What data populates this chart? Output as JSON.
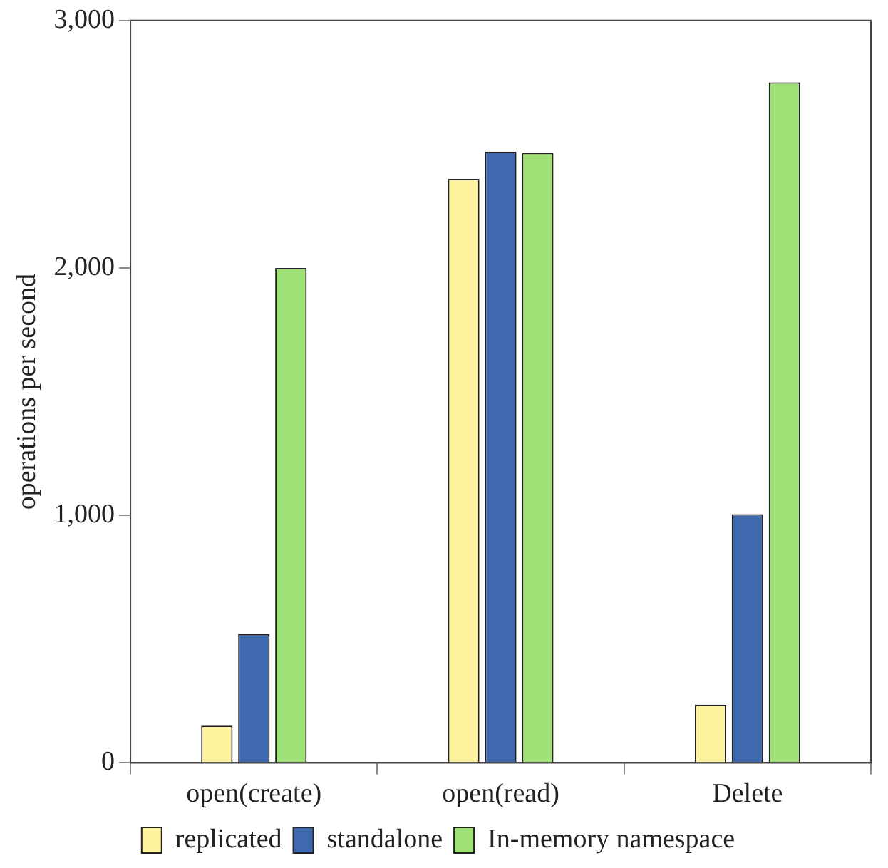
{
  "chart_data": {
    "type": "bar",
    "ylabel": "operations per second",
    "categories": [
      "open(create)",
      "open(read)",
      "Delete"
    ],
    "series": [
      {
        "name": "replicated",
        "color": "#fff29e",
        "values": [
          150,
          2360,
          235
        ]
      },
      {
        "name": "standalone",
        "color": "#3f69ae",
        "values": [
          520,
          2470,
          1005
        ]
      },
      {
        "name": "In-memory namespace",
        "color": "#9fe076",
        "values": [
          2000,
          2465,
          2750
        ]
      }
    ],
    "ylim": [
      0,
      3000
    ],
    "yticks": [
      {
        "value": 0,
        "label": "0"
      },
      {
        "value": 1000,
        "label": "1,000"
      },
      {
        "value": 2000,
        "label": "2,000"
      },
      {
        "value": 3000,
        "label": "3,000"
      }
    ],
    "grid": false,
    "legend": "bottom"
  }
}
